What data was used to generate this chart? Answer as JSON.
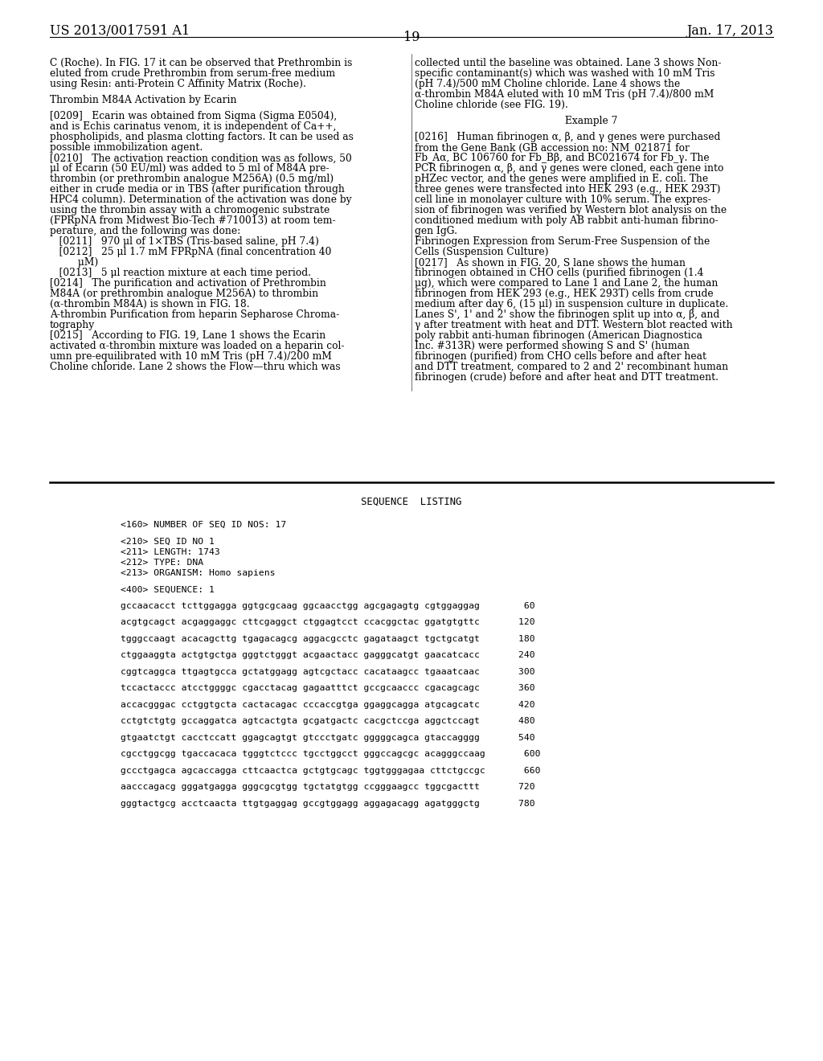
{
  "background_color": "#ffffff",
  "header_left": "US 2013/0017591 A1",
  "header_right": "Jan. 17, 2013",
  "page_number": "19",
  "left_col": [
    {
      "t": "C (Roche). In FIG. 17 it can be observed that Prethrombin is",
      "b": false
    },
    {
      "t": "eluted from crude Prethrombin from serum-free medium",
      "b": false
    },
    {
      "t": "using Resin: anti-Protein C Affinity Matrix (Roche).",
      "b": false
    },
    {
      "t": "",
      "b": false
    },
    {
      "t": "Thrombin M84A Activation by Ecarin",
      "b": false,
      "plain": true
    },
    {
      "t": "",
      "b": false
    },
    {
      "t": "[0209]   Ecarin was obtained from Sigma (Sigma E0504),",
      "b": false
    },
    {
      "t": "and is Echis carinatus venom, it is independent of Ca++,",
      "b": false
    },
    {
      "t": "phospholipids, and plasma clotting factors. It can be used as",
      "b": false
    },
    {
      "t": "possible immobilization agent.",
      "b": false
    },
    {
      "t": "[0210]   The activation reaction condition was as follows, 50",
      "b": false
    },
    {
      "t": "μl of Ecarin (50 EU/ml) was added to 5 ml of M84A pre-",
      "b": false
    },
    {
      "t": "thrombin (or prethrombin analogue M256A) (0.5 mg/ml)",
      "b": false
    },
    {
      "t": "either in crude media or in TBS (after purification through",
      "b": false
    },
    {
      "t": "HPC4 column). Determination of the activation was done by",
      "b": false
    },
    {
      "t": "using the thrombin assay with a chromogenic substrate",
      "b": false
    },
    {
      "t": "(FPRpNA from Midwest Bio-Tech #710013) at room tem-",
      "b": false
    },
    {
      "t": "perature, and the following was done:",
      "b": false
    },
    {
      "t": "   [0211]   970 μl of 1×TBS (Tris-based saline, pH 7.4)",
      "b": false,
      "indent": true
    },
    {
      "t": "   [0212]   25 μl 1.7 mM FPRpNA (final concentration 40",
      "b": false,
      "indent": true
    },
    {
      "t": "         μM)",
      "b": false,
      "indent": true
    },
    {
      "t": "   [0213]   5 μl reaction mixture at each time period.",
      "b": false,
      "indent": true
    },
    {
      "t": "[0214]   The purification and activation of Prethrombin",
      "b": false
    },
    {
      "t": "M84A (or prethrombin analogue M256A) to thrombin",
      "b": false
    },
    {
      "t": "(α-thrombin M84A) is shown in FIG. 18.",
      "b": false
    },
    {
      "t": "A-thrombin Purification from heparin Sepharose Chroma-",
      "b": false,
      "plain": true
    },
    {
      "t": "tography",
      "b": false,
      "plain": true
    },
    {
      "t": "[0215]   According to FIG. 19, Lane 1 shows the Ecarin",
      "b": false
    },
    {
      "t": "activated α-thrombin mixture was loaded on a heparin col-",
      "b": false
    },
    {
      "t": "umn pre-equilibrated with 10 mM Tris (pH 7.4)/200 mM",
      "b": false
    },
    {
      "t": "Choline chloride. Lane 2 shows the Flow—thru which was",
      "b": false
    }
  ],
  "right_col": [
    {
      "t": "collected until the baseline was obtained. Lane 3 shows Non-",
      "b": false
    },
    {
      "t": "specific contaminant(s) which was washed with 10 mM Tris",
      "b": false
    },
    {
      "t": "(pH 7.4)/500 mM Choline chloride. Lane 4 shows the",
      "b": false
    },
    {
      "t": "α-thrombin M84A eluted with 10 mM Tris (pH 7.4)/800 mM",
      "b": false
    },
    {
      "t": "Choline chloride (see FIG. 19).",
      "b": false
    },
    {
      "t": "",
      "b": false
    },
    {
      "t": "Example 7",
      "b": false,
      "center": true
    },
    {
      "t": "",
      "b": false
    },
    {
      "t": "[0216]   Human fibrinogen α, β, and γ genes were purchased",
      "b": false
    },
    {
      "t": "from the Gene Bank (GB accession no: NM_021871 for",
      "b": false
    },
    {
      "t": "Fb_Aα, BC 106760 for Fb_Bβ, and BC021674 for Fb_γ. The",
      "b": false
    },
    {
      "t": "PCR fibrinogen α, β, and γ genes were cloned, each gene into",
      "b": false
    },
    {
      "t": "pHZec vector, and the genes were amplified in E. coli. The",
      "b": false
    },
    {
      "t": "three genes were transfected into HEK 293 (e.g., HEK 293T)",
      "b": false
    },
    {
      "t": "cell line in monolayer culture with 10% serum. The expres-",
      "b": false
    },
    {
      "t": "sion of fibrinogen was verified by Western blot analysis on the",
      "b": false
    },
    {
      "t": "conditioned medium with poly AB rabbit anti-human fibrino-",
      "b": false
    },
    {
      "t": "gen IgG.",
      "b": false
    },
    {
      "t": "Fibrinogen Expression from Serum-Free Suspension of the",
      "b": false,
      "plain": true
    },
    {
      "t": "Cells (Suspension Culture)",
      "b": false,
      "plain": true
    },
    {
      "t": "[0217]   As shown in FIG. 20, S lane shows the human",
      "b": false
    },
    {
      "t": "fibrinogen obtained in CHO cells (purified fibrinogen (1.4",
      "b": false
    },
    {
      "t": "μg), which were compared to Lane 1 and Lane 2, the human",
      "b": false
    },
    {
      "t": "fibrinogen from HEK 293 (e.g., HEK 293T) cells from crude",
      "b": false
    },
    {
      "t": "medium after day 6, (15 μl) in suspension culture in duplicate.",
      "b": false
    },
    {
      "t": "Lanes S', 1' and 2' show the fibrinogen split up into α, β, and",
      "b": false
    },
    {
      "t": "γ after treatment with heat and DTT. Western blot reacted with",
      "b": false
    },
    {
      "t": "poly rabbit anti-human fibrinogen (American Diagnostica",
      "b": false
    },
    {
      "t": "Inc. #313R) were performed showing S and S' (human",
      "b": false
    },
    {
      "t": "fibrinogen (purified) from CHO cells before and after heat",
      "b": false
    },
    {
      "t": "and DTT treatment, compared to 2 and 2' recombinant human",
      "b": false
    },
    {
      "t": "fibrinogen (crude) before and after heat and DTT treatment.",
      "b": false
    }
  ],
  "seq_lines": [
    {
      "t": "<160> NUMBER OF SEQ ID NOS: 17",
      "gap_after": true
    },
    {
      "t": "<210> SEQ ID NO 1",
      "gap_after": false
    },
    {
      "t": "<211> LENGTH: 1743",
      "gap_after": false
    },
    {
      "t": "<212> TYPE: DNA",
      "gap_after": false
    },
    {
      "t": "<213> ORGANISM: Homo sapiens",
      "gap_after": true
    },
    {
      "t": "<400> SEQUENCE: 1",
      "gap_after": true
    },
    {
      "t": "gccaacacct tcttggagga ggtgcgcaag ggcaacctgg agcgagagtg cgtggaggag        60",
      "gap_after": true
    },
    {
      "t": "acgtgcagct acgaggaggc cttcgaggct ctggagtcct ccacggctac ggatgtgttc       120",
      "gap_after": true
    },
    {
      "t": "tgggccaagt acacagcttg tgagacagcg aggacgcctc gagataagct tgctgcatgt       180",
      "gap_after": true
    },
    {
      "t": "ctggaaggta actgtgctga gggtctgggt acgaactacc gagggcatgt gaacatcacc       240",
      "gap_after": true
    },
    {
      "t": "cggtcaggca ttgagtgcca gctatggagg agtcgctacc cacataagcc tgaaatcaac       300",
      "gap_after": true
    },
    {
      "t": "tccactaccc atcctggggc cgacctacag gagaatttct gccgcaaccc cgacagcagc       360",
      "gap_after": true
    },
    {
      "t": "accacgggac cctggtgcta cactacagac cccaccgtga ggaggcagga atgcagcatc       420",
      "gap_after": true
    },
    {
      "t": "cctgtctgtg gccaggatca agtcactgta gcgatgactc cacgctccga aggctccagt       480",
      "gap_after": true
    },
    {
      "t": "gtgaatctgt cacctccatt ggagcagtgt gtccctgatc gggggcagca gtaccagggg       540",
      "gap_after": true
    },
    {
      "t": "cgcctggcgg tgaccacaca tgggtctccc tgcctggcct gggccagcgc acagggccaag       600",
      "gap_after": true
    },
    {
      "t": "gccctgagca agcaccagga cttcaactca gctgtgcagc tggtgggagaa cttctgccgc       660",
      "gap_after": true
    },
    {
      "t": "aacccagacg gggatgagga gggcgcgtgg tgctatgtgg ccgggaagcc tggcgacttt       720",
      "gap_after": true
    },
    {
      "t": "gggtactgcg acctcaacta ttgtgaggag gccgtggagg aggagacagg agatgggctg       780",
      "gap_after": false
    }
  ]
}
